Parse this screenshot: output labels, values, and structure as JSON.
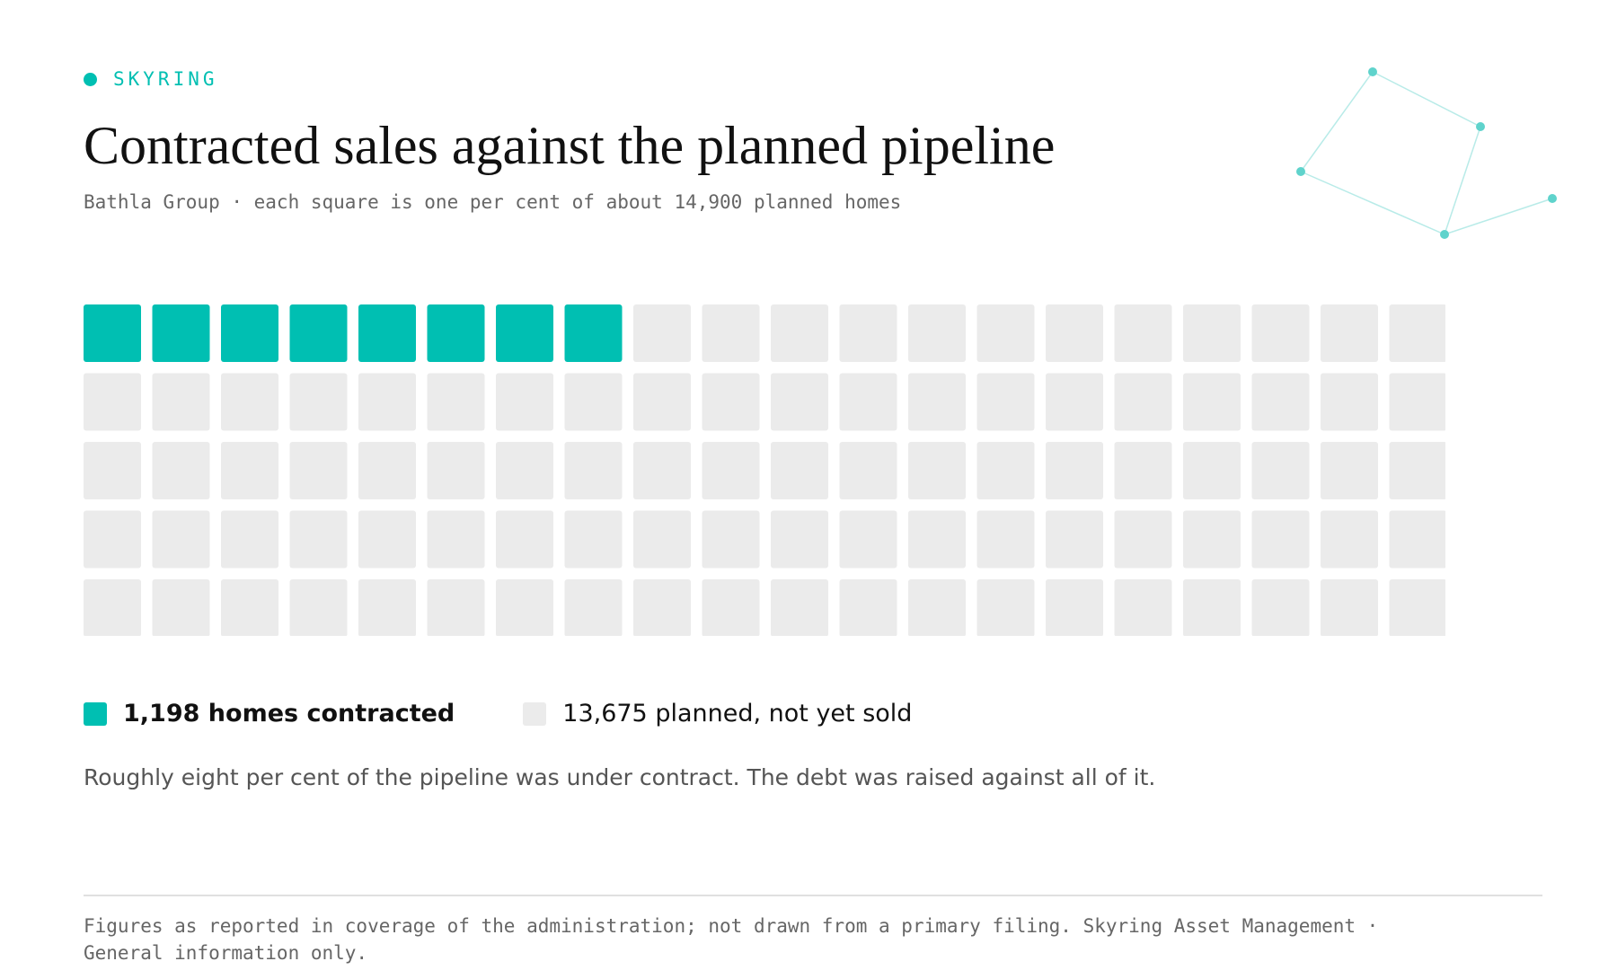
{
  "brand": {
    "name": "SKYRING",
    "accent_color": "#00bfb2"
  },
  "chart_data": {
    "type": "waffle",
    "title": "Contracted sales against the planned pipeline",
    "subtitle": "Bathla Group · each square is one per cent of about 14,900 planned homes",
    "total_squares": 100,
    "filled_squares": 8,
    "columns": 20,
    "rows": 5,
    "series": [
      {
        "name": "1,198 homes contracted",
        "value": 1198,
        "color": "#00bfb2"
      },
      {
        "name": "13,675 planned, not yet sold",
        "value": 13675,
        "color": "#ebebeb"
      }
    ]
  },
  "legend": {
    "contracted_label": "1,198 homes contracted",
    "unsold_label": "13,675 planned, not yet sold"
  },
  "note": "Roughly eight per cent of the pipeline was under contract. The debt was raised against all of it.",
  "footer": "Figures as reported in coverage of the administration; not drawn from a primary filing. Skyring Asset Management · General information only."
}
